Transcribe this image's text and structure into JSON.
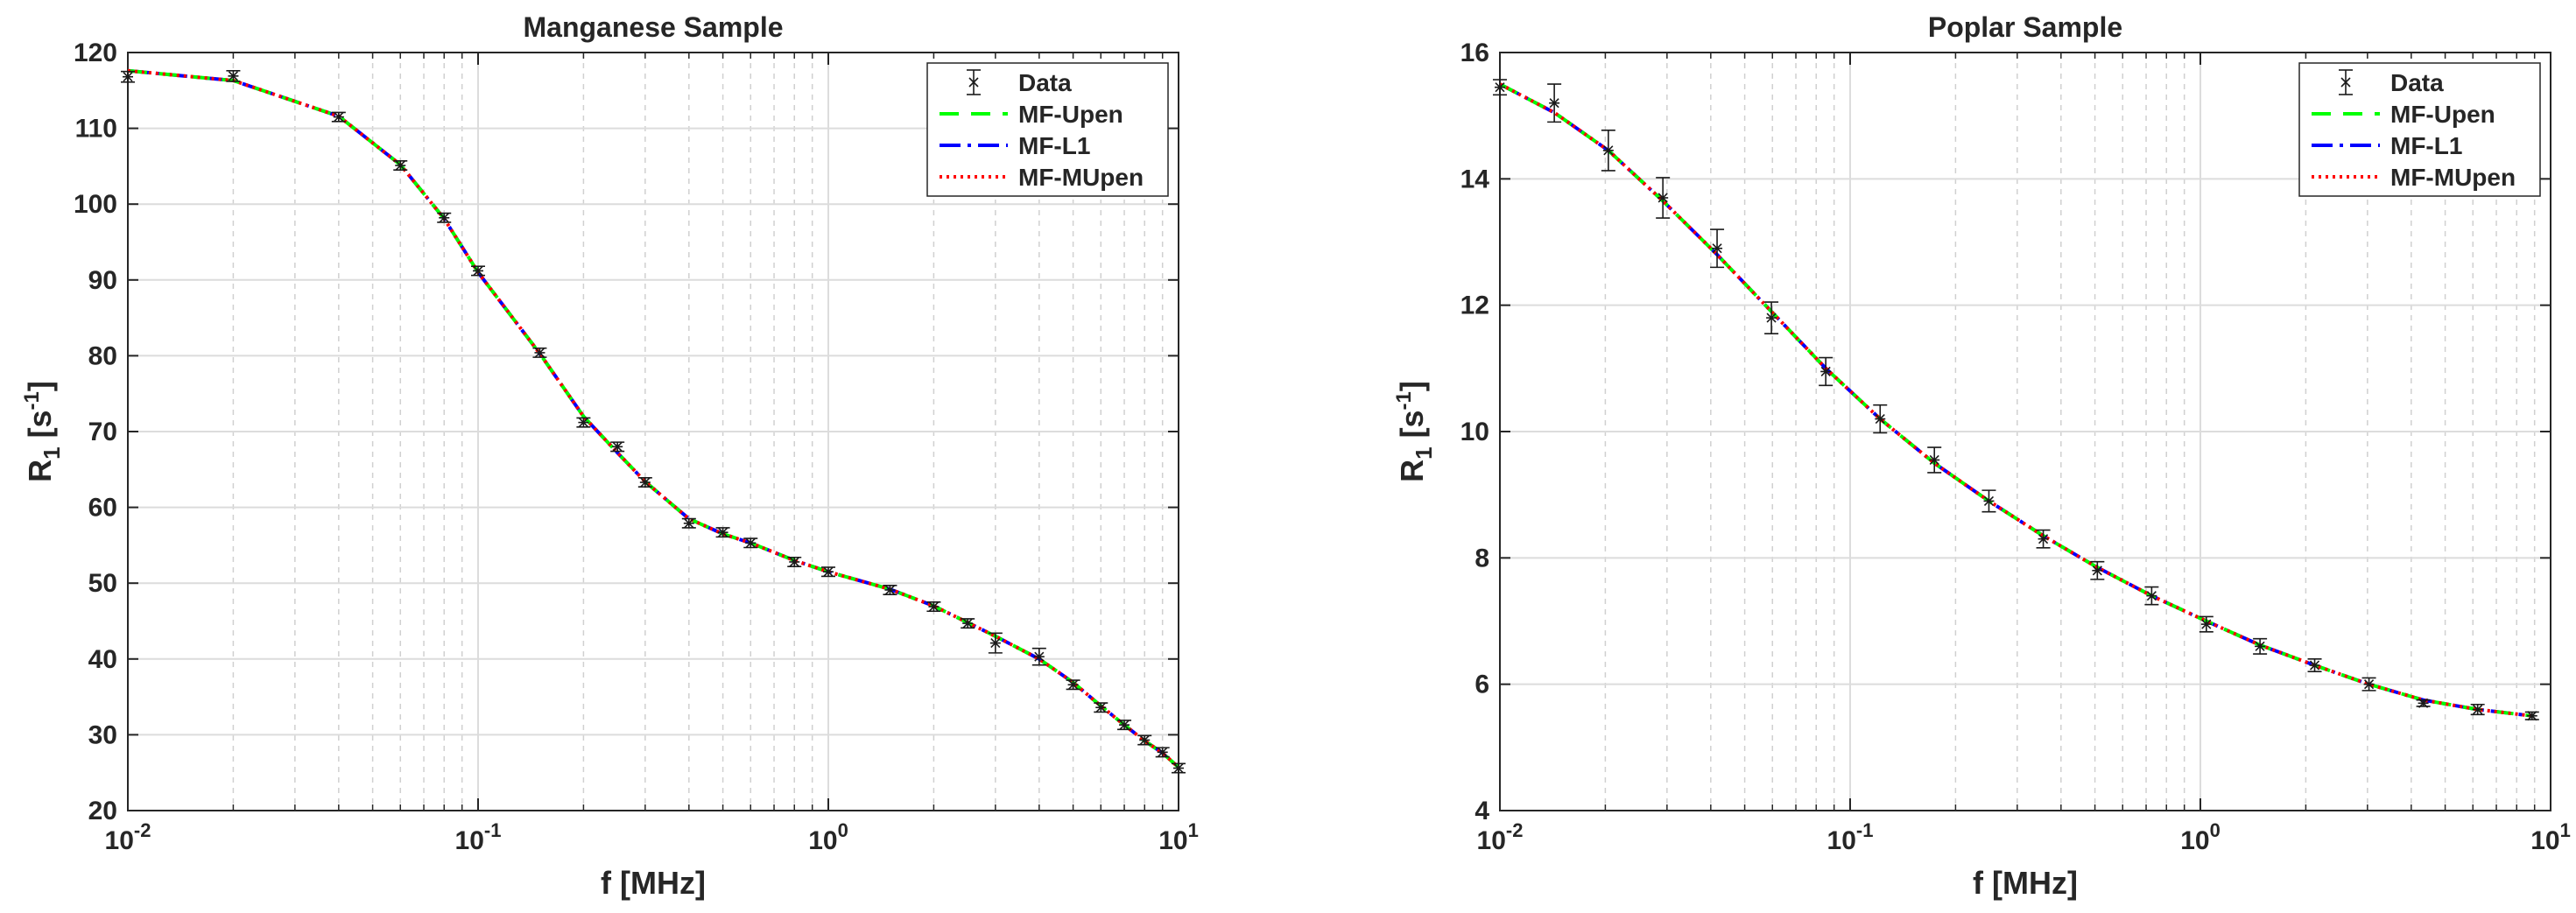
{
  "chart_data": [
    {
      "type": "line",
      "title": "Manganese Sample",
      "xlabel": "f  [MHz]",
      "ylabel": "R",
      "ylabel_sub": "1",
      "ylabel_unit_open": " [s",
      "ylabel_unit_sup": "-1",
      "ylabel_unit_close": "]",
      "xscale": "log",
      "xlim": [
        0.01,
        10
      ],
      "ylim": [
        20,
        120
      ],
      "xticks": [
        {
          "value": 0.01,
          "base": "10",
          "exp": "-2"
        },
        {
          "value": 0.1,
          "base": "10",
          "exp": "-1"
        },
        {
          "value": 1,
          "base": "10",
          "exp": "0"
        },
        {
          "value": 10,
          "base": "10",
          "exp": "1"
        }
      ],
      "yticks": [
        20,
        30,
        40,
        50,
        60,
        70,
        80,
        90,
        100,
        110,
        120
      ],
      "grid": true,
      "legend": "top-right",
      "series": [
        {
          "name": "Data",
          "kind": "errorbar",
          "color": "#1a1a1a",
          "x": [
            0.01,
            0.02,
            0.04,
            0.06,
            0.08,
            0.1,
            0.15,
            0.2,
            0.25,
            0.3,
            0.4,
            0.5,
            0.6,
            0.8,
            1,
            1.5,
            2,
            2.5,
            3,
            4,
            5,
            6,
            7,
            8,
            9,
            10
          ],
          "y": [
            116.8,
            116.9,
            111.5,
            105.1,
            98.2,
            91.2,
            80.4,
            71.2,
            68.0,
            63.3,
            57.9,
            56.7,
            55.3,
            52.8,
            51.5,
            49.1,
            46.9,
            44.7,
            42.1,
            40.3,
            36.6,
            33.6,
            31.3,
            29.3,
            27.7,
            25.6
          ],
          "err": [
            0.7,
            0.7,
            0.6,
            0.6,
            0.6,
            0.6,
            0.6,
            0.6,
            0.6,
            0.6,
            0.6,
            0.6,
            0.6,
            0.6,
            0.6,
            0.6,
            0.6,
            0.6,
            1.3,
            1.1,
            0.6,
            0.6,
            0.6,
            0.6,
            0.6,
            0.6
          ]
        },
        {
          "name": "MF-Upen",
          "kind": "line",
          "color": "#00ff00",
          "dash": "22 14",
          "x": [
            0.01,
            0.02,
            0.04,
            0.06,
            0.08,
            0.1,
            0.15,
            0.2,
            0.25,
            0.3,
            0.4,
            0.5,
            0.6,
            0.8,
            1,
            1.5,
            2,
            2.5,
            3,
            4,
            5,
            6,
            7,
            8,
            9,
            10
          ],
          "y": [
            117.6,
            116.3,
            111.6,
            105.2,
            98.1,
            91.0,
            80.3,
            72.0,
            67.2,
            63.4,
            58.5,
            56.5,
            55.3,
            53.0,
            51.5,
            49.2,
            47.0,
            44.8,
            43.0,
            40.0,
            36.9,
            33.8,
            31.3,
            29.2,
            27.6,
            25.7
          ]
        },
        {
          "name": "MF-L1",
          "kind": "line",
          "color": "#0000ff",
          "dash": "24 8 4 8",
          "x": [
            0.01,
            0.02,
            0.04,
            0.06,
            0.08,
            0.1,
            0.15,
            0.2,
            0.25,
            0.3,
            0.4,
            0.5,
            0.6,
            0.8,
            1,
            1.5,
            2,
            2.5,
            3,
            4,
            5,
            6,
            7,
            8,
            9,
            10
          ],
          "y": [
            117.6,
            116.3,
            111.6,
            105.2,
            98.1,
            91.0,
            80.3,
            72.0,
            67.2,
            63.4,
            58.5,
            56.5,
            55.3,
            53.0,
            51.5,
            49.2,
            47.0,
            44.8,
            43.0,
            40.0,
            36.9,
            33.8,
            31.3,
            29.2,
            27.6,
            25.7
          ]
        },
        {
          "name": "MF-MUpen",
          "kind": "line",
          "color": "#ff0000",
          "dash": "3 5",
          "x": [
            0.01,
            0.02,
            0.04,
            0.06,
            0.08,
            0.1,
            0.15,
            0.2,
            0.25,
            0.3,
            0.4,
            0.5,
            0.6,
            0.8,
            1,
            1.5,
            2,
            2.5,
            3,
            4,
            5,
            6,
            7,
            8,
            9,
            10
          ],
          "y": [
            117.6,
            116.3,
            111.6,
            105.2,
            98.1,
            91.0,
            80.3,
            72.0,
            67.2,
            63.4,
            58.5,
            56.5,
            55.3,
            53.0,
            51.5,
            49.2,
            47.0,
            44.8,
            43.0,
            40.0,
            36.9,
            33.8,
            31.3,
            29.2,
            27.6,
            25.7
          ]
        }
      ]
    },
    {
      "type": "line",
      "title": "Poplar Sample",
      "xlabel": "f  [MHz]",
      "ylabel": "R",
      "ylabel_sub": "1",
      "ylabel_unit_open": " [s",
      "ylabel_unit_sup": "-1",
      "ylabel_unit_close": "]",
      "xscale": "log",
      "xlim": [
        0.01,
        10
      ],
      "ylim": [
        4,
        16
      ],
      "xticks": [
        {
          "value": 0.01,
          "base": "10",
          "exp": "-2"
        },
        {
          "value": 0.1,
          "base": "10",
          "exp": "-1"
        },
        {
          "value": 1,
          "base": "10",
          "exp": "0"
        },
        {
          "value": 10,
          "base": "10",
          "exp": "1"
        }
      ],
      "yticks": [
        4,
        6,
        8,
        10,
        12,
        14,
        16
      ],
      "grid": true,
      "legend": "top-right",
      "series": [
        {
          "name": "Data",
          "kind": "errorbar",
          "color": "#1a1a1a",
          "x": [
            0.01,
            0.0143,
            0.0204,
            0.0292,
            0.0417,
            0.0596,
            0.0852,
            0.1218,
            0.174,
            0.249,
            0.356,
            0.508,
            0.726,
            1.04,
            1.48,
            2.12,
            3.03,
            4.33,
            6.19,
            8.85
          ],
          "y": [
            15.45,
            15.2,
            14.45,
            13.7,
            12.9,
            11.8,
            10.95,
            10.2,
            9.55,
            8.9,
            8.3,
            7.8,
            7.4,
            6.95,
            6.6,
            6.3,
            6.0,
            5.7,
            5.6,
            5.5
          ],
          "err": [
            0.12,
            0.3,
            0.32,
            0.32,
            0.3,
            0.25,
            0.22,
            0.22,
            0.2,
            0.17,
            0.14,
            0.14,
            0.14,
            0.12,
            0.12,
            0.1,
            0.1,
            0.05,
            0.08,
            0.06
          ]
        },
        {
          "name": "MF-Upen",
          "kind": "line",
          "color": "#00ff00",
          "dash": "22 14",
          "x": [
            0.01,
            0.0143,
            0.0204,
            0.0292,
            0.0417,
            0.0596,
            0.0852,
            0.1218,
            0.174,
            0.249,
            0.356,
            0.508,
            0.726,
            1.04,
            1.48,
            2.12,
            3.03,
            4.33,
            6.19,
            8.85
          ],
          "y": [
            15.5,
            15.05,
            14.45,
            13.65,
            12.8,
            11.9,
            11.0,
            10.2,
            9.5,
            8.9,
            8.35,
            7.85,
            7.4,
            7.0,
            6.62,
            6.3,
            6.0,
            5.75,
            5.6,
            5.5
          ]
        },
        {
          "name": "MF-L1",
          "kind": "line",
          "color": "#0000ff",
          "dash": "24 8 4 8",
          "x": [
            0.01,
            0.0143,
            0.0204,
            0.0292,
            0.0417,
            0.0596,
            0.0852,
            0.1218,
            0.174,
            0.249,
            0.356,
            0.508,
            0.726,
            1.04,
            1.48,
            2.12,
            3.03,
            4.33,
            6.19,
            8.85
          ],
          "y": [
            15.5,
            15.05,
            14.45,
            13.65,
            12.8,
            11.9,
            11.0,
            10.2,
            9.5,
            8.9,
            8.35,
            7.85,
            7.4,
            7.0,
            6.62,
            6.3,
            6.0,
            5.75,
            5.6,
            5.5
          ]
        },
        {
          "name": "MF-MUpen",
          "kind": "line",
          "color": "#ff0000",
          "dash": "3 5",
          "x": [
            0.01,
            0.0143,
            0.0204,
            0.0292,
            0.0417,
            0.0596,
            0.0852,
            0.1218,
            0.174,
            0.249,
            0.356,
            0.508,
            0.726,
            1.04,
            1.48,
            2.12,
            3.03,
            4.33,
            6.19,
            8.85
          ],
          "y": [
            15.5,
            15.05,
            14.45,
            13.65,
            12.8,
            11.9,
            11.0,
            10.2,
            9.5,
            8.9,
            8.35,
            7.85,
            7.4,
            7.0,
            6.62,
            6.3,
            6.0,
            5.75,
            5.6,
            5.5
          ]
        }
      ]
    }
  ]
}
